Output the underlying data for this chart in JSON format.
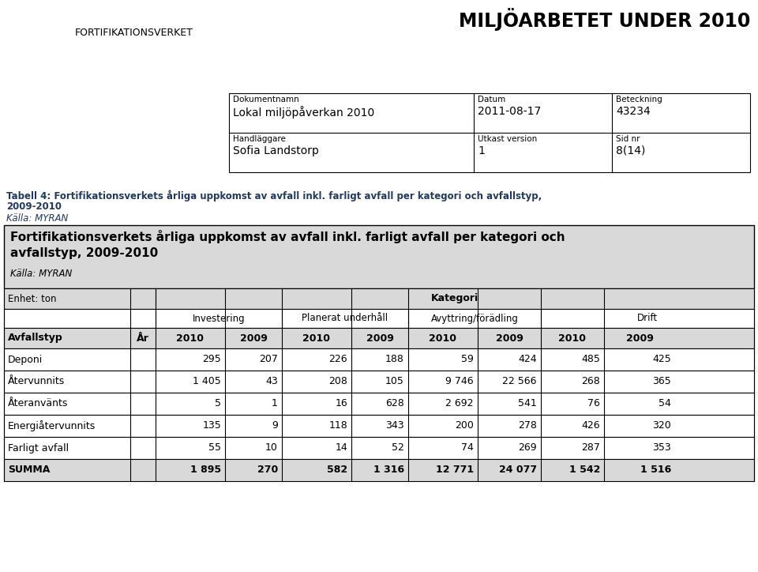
{
  "title": "MILJÖARBETET UNDER 2010",
  "doc_label1": "Dokumentnamn",
  "doc_value1": "Lokal miljöpåverkan 2010",
  "doc_label2": "Datum",
  "doc_value2": "2011-08-17",
  "doc_label3": "Beteckning",
  "doc_value3": "43234",
  "doc_label4": "Handläggare",
  "doc_value4": "Sofia Landstorp",
  "doc_label5": "Utkast version",
  "doc_value5": "1",
  "doc_label6": "Sid nr",
  "doc_value6": "8(14)",
  "caption_line1": "Tabell 4: Fortifikationsverkets årliga uppkomst av avfall inkl. farligt avfall per kategori och avfallstyp,",
  "caption_line2": "2009-2010",
  "caption_italic": "Källa: MYRAN",
  "table_title_line1": "Fortifikationsverkets årliga uppkomst av avfall inkl. farligt avfall per kategori och",
  "table_title_line2": "avfallstyp, 2009-2010",
  "table_title_italic": "Källa: MYRAN",
  "unit_label": "Enhet: ton",
  "kategori_label": "Kategori",
  "categories": [
    "Investering",
    "Planerat underhåll",
    "Avyttring/förädling",
    "Drift"
  ],
  "col_headers": [
    "Avfallstyp",
    "År",
    "2010",
    "2009",
    "2010",
    "2009",
    "2010",
    "2009",
    "2010",
    "2009"
  ],
  "rows": [
    [
      "Deponi",
      "",
      "295",
      "207",
      "226",
      "188",
      "59",
      "424",
      "485",
      "425"
    ],
    [
      "Återvunnits",
      "",
      "1 405",
      "43",
      "208",
      "105",
      "9 746",
      "22 566",
      "268",
      "365"
    ],
    [
      "Återanvänts",
      "",
      "5",
      "1",
      "16",
      "628",
      "2 692",
      "541",
      "76",
      "54"
    ],
    [
      "Energiåtervunnits",
      "",
      "135",
      "9",
      "118",
      "343",
      "200",
      "278",
      "426",
      "320"
    ],
    [
      "Farligt avfall",
      "",
      "55",
      "10",
      "14",
      "52",
      "74",
      "269",
      "287",
      "353"
    ]
  ],
  "summa_row": [
    "SUMMA",
    "",
    "1 895",
    "270",
    "582",
    "1 316",
    "12 771",
    "24 077",
    "1 542",
    "1 516"
  ],
  "bg_color": "#ffffff",
  "gray_bg": "#d9d9d9",
  "caption_color": "#1f3864",
  "black": "#000000"
}
